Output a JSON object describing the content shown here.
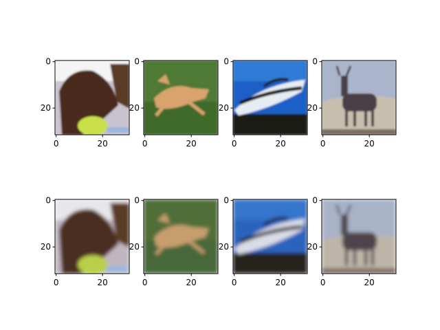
{
  "layout": {
    "rows": 2,
    "cols": 4
  },
  "axes": {
    "x_ticks": [
      "0",
      "20"
    ],
    "y_ticks": [
      "0",
      "20"
    ],
    "xlim": [
      -0.5,
      31.5
    ],
    "ylim": [
      31.5,
      -0.5
    ],
    "x_tick_values": [
      0,
      20
    ],
    "y_tick_values": [
      0,
      20
    ],
    "frame_color": "#000000"
  },
  "panels": [
    {
      "row": "original",
      "subject": "horse",
      "colors": {
        "bg": "#c9c2cf",
        "fg": "#4a2c1e",
        "accent": "#c9e04a",
        "sky": "#f4f4f4"
      }
    },
    {
      "row": "original",
      "subject": "dog",
      "colors": {
        "bg": "#4f7a35",
        "fg": "#d9a36d",
        "accent": "#3f6b2b",
        "sky": "#5d8a3e"
      }
    },
    {
      "row": "original",
      "subject": "boat",
      "colors": {
        "bg": "#1e5fc6",
        "fg": "#e6edf2",
        "accent": "#1d1a16",
        "sky": "#2f7ad6"
      }
    },
    {
      "row": "original",
      "subject": "deer",
      "colors": {
        "bg": "#aab5cc",
        "fg": "#4a4046",
        "accent": "#c7bfae",
        "sky": "#8ea3c7"
      }
    },
    {
      "row": "reconstruction",
      "subject": "horse",
      "colors": {
        "bg": "#bfb6bf",
        "fg": "#4b2f22",
        "accent": "#b9cf4a",
        "sky": "#e8e6ea"
      }
    },
    {
      "row": "reconstruction",
      "subject": "dog",
      "colors": {
        "bg": "#4f6e38",
        "fg": "#c89d6e",
        "accent": "#46683a",
        "sky": "#567b40"
      }
    },
    {
      "row": "reconstruction",
      "subject": "boat",
      "colors": {
        "bg": "#2a63bd",
        "fg": "#d9dde6",
        "accent": "#25211d",
        "sky": "#3674cc"
      }
    },
    {
      "row": "reconstruction",
      "subject": "deer",
      "colors": {
        "bg": "#a9b3c8",
        "fg": "#4e454b",
        "accent": "#bdb6a8",
        "sky": "#91a2c0"
      }
    }
  ]
}
